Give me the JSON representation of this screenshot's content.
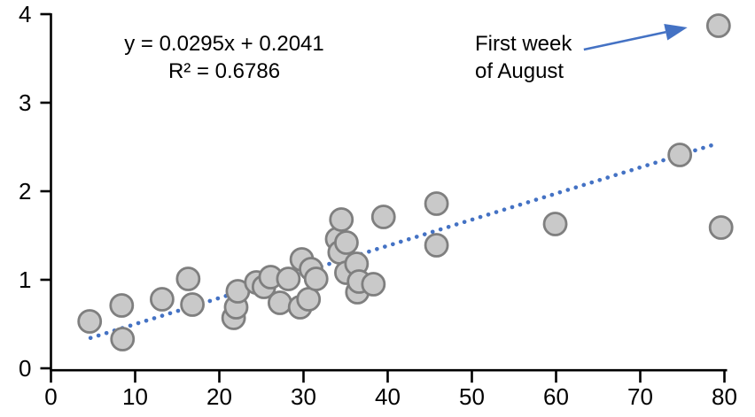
{
  "chart_data": {
    "type": "scatter",
    "title": "",
    "xlabel": "",
    "ylabel": "",
    "xlim": [
      0,
      80
    ],
    "ylim": [
      0,
      4
    ],
    "x_ticks": [
      0,
      10,
      20,
      30,
      40,
      50,
      60,
      70,
      80
    ],
    "y_ticks": [
      0,
      1,
      2,
      3,
      4
    ],
    "grid": false,
    "legend": false,
    "points": [
      [
        4.6,
        0.53
      ],
      [
        8.4,
        0.71
      ],
      [
        8.5,
        0.33
      ],
      [
        13.2,
        0.78
      ],
      [
        16.3,
        1.01
      ],
      [
        16.8,
        0.72
      ],
      [
        21.7,
        0.57
      ],
      [
        22.0,
        0.69
      ],
      [
        22.2,
        0.87
      ],
      [
        24.4,
        0.97
      ],
      [
        25.3,
        0.92
      ],
      [
        26.1,
        1.03
      ],
      [
        27.2,
        0.74
      ],
      [
        28.2,
        1.01
      ],
      [
        29.6,
        0.69
      ],
      [
        29.8,
        1.23
      ],
      [
        30.6,
        0.78
      ],
      [
        30.9,
        1.12
      ],
      [
        31.5,
        1.01
      ],
      [
        34.0,
        1.46
      ],
      [
        34.3,
        1.31
      ],
      [
        34.5,
        1.68
      ],
      [
        35.1,
        1.42
      ],
      [
        35.1,
        1.08
      ],
      [
        36.3,
        1.18
      ],
      [
        36.4,
        0.86
      ],
      [
        36.6,
        0.98
      ],
      [
        38.3,
        0.95
      ],
      [
        39.5,
        1.71
      ],
      [
        45.8,
        1.86
      ],
      [
        45.8,
        1.39
      ],
      [
        59.9,
        1.63
      ],
      [
        74.7,
        2.41
      ],
      [
        79.3,
        3.87
      ],
      [
        79.6,
        1.59
      ]
    ],
    "outlier_point": [
      79.3,
      3.87
    ],
    "trendline": {
      "slope": 0.0295,
      "intercept": 0.2041,
      "x_start": 4.7,
      "x_end": 78.6,
      "style": "dotted",
      "color": "#4472C4"
    },
    "equation_label": "y = 0.0295x + 0.2041",
    "r_squared_label": "R² = 0.6786",
    "annotation": {
      "lines": [
        "First week",
        "of August"
      ],
      "arrow_from": [
        63.3,
        3.6
      ],
      "arrow_to": [
        75.6,
        3.85
      ],
      "arrow_color": "#4472C4"
    },
    "point_style": {
      "fill": "#C9C9C9",
      "stroke": "#7F7F7F",
      "radius": 12.5,
      "stroke_width": 2.8
    },
    "axis_color": "#000000"
  }
}
